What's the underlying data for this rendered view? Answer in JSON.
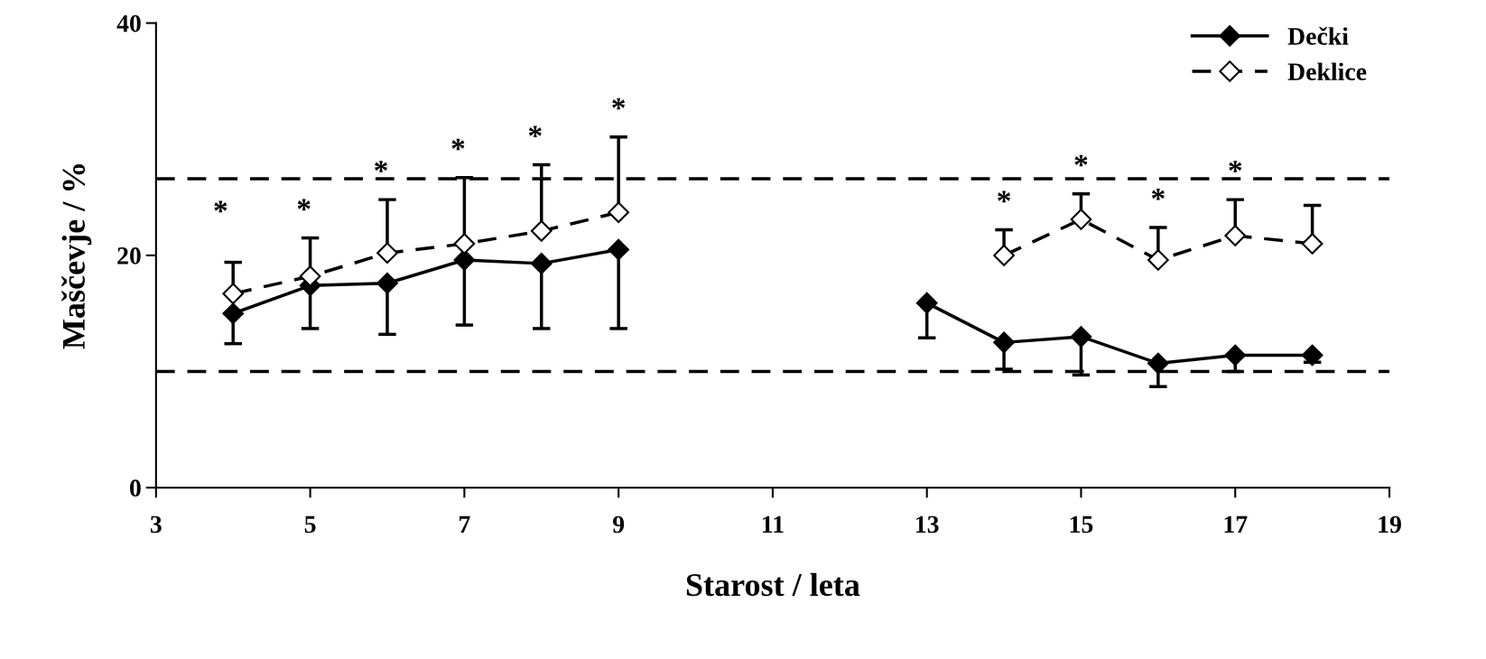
{
  "chart_data": {
    "type": "line",
    "xlabel": "Starost / leta",
    "ylabel": "Maščevje / %",
    "xlim": [
      3,
      19
    ],
    "xticks": [
      3,
      5,
      7,
      9,
      11,
      13,
      15,
      17,
      19
    ],
    "ylim": [
      0,
      40
    ],
    "yticks": [
      0,
      20,
      40
    ],
    "grid": false,
    "legend": "top right",
    "marker": "diamond",
    "series": [
      {
        "name": "Dečki",
        "color": "#000000",
        "line_style": "solid",
        "x": [
          4,
          5,
          6,
          7,
          8,
          9,
          11,
          13,
          14,
          15,
          16,
          17,
          18
        ],
        "values": [
          15.0,
          17.4,
          17.6,
          19.6,
          19.3,
          20.5,
          null,
          15.9,
          12.5,
          13.0,
          10.7,
          11.4,
          11.4
        ],
        "errors": [
          [
            12.4,
            15.0
          ],
          [
            13.7,
            17.4
          ],
          [
            13.2,
            17.6
          ],
          [
            14.0,
            19.6
          ],
          [
            13.7,
            19.3
          ],
          [
            13.7,
            20.5
          ],
          null,
          [
            12.9,
            15.9
          ],
          [
            10.2,
            12.5
          ],
          [
            9.7,
            13.0
          ],
          [
            8.7,
            10.7
          ],
          [
            10.0,
            11.4
          ],
          [
            10.8,
            11.4
          ]
        ]
      },
      {
        "name": "Deklice",
        "color": "#000000",
        "line_style": "dashed",
        "x": [
          4,
          5,
          6,
          7,
          8,
          9,
          11,
          14,
          15,
          16,
          17,
          18
        ],
        "values": [
          16.7,
          18.2,
          20.2,
          21.0,
          22.1,
          23.7,
          null,
          20.0,
          23.1,
          19.6,
          21.7,
          21.0
        ],
        "errors": [
          [
            16.7,
            19.4
          ],
          [
            18.2,
            21.5
          ],
          [
            20.2,
            24.8
          ],
          [
            21.0,
            26.7
          ],
          [
            22.1,
            27.8
          ],
          [
            23.7,
            30.2
          ],
          null,
          [
            20.0,
            22.2
          ],
          [
            23.1,
            25.3
          ],
          [
            19.6,
            22.4
          ],
          [
            21.7,
            24.8
          ],
          [
            21.0,
            24.3
          ]
        ]
      }
    ],
    "ref_lines": [
      {
        "axis": "y",
        "value": 26.6,
        "label": null,
        "line_style": "dashed",
        "color": "#000000"
      },
      {
        "axis": "y",
        "value": 10.0,
        "label": null,
        "line_style": "dashed",
        "color": "#000000"
      }
    ],
    "annotations": [
      "*",
      "*",
      "*",
      "*",
      "*",
      "*",
      "*",
      "*",
      "*",
      "*"
    ]
  }
}
